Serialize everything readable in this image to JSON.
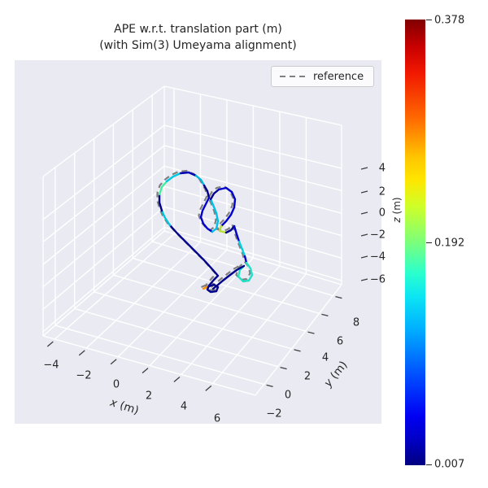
{
  "title": {
    "line1": "APE w.r.t. translation part (m)",
    "line2": "(with Sim(3) Umeyama alignment)"
  },
  "legend": {
    "items": [
      {
        "label": "reference",
        "line_style": "dashed",
        "color": "#808080"
      }
    ]
  },
  "colorbar": {
    "colormap": "jet",
    "max_label": "0.378",
    "mid_label": "0.192",
    "min_label": "0.007"
  },
  "axes": {
    "x": {
      "var": "x",
      "unit": " (m)",
      "ticks": [
        "−4",
        "−2",
        "0",
        "2",
        "4",
        "6"
      ]
    },
    "y": {
      "var": "y",
      "unit": " (m)",
      "ticks": [
        "−2",
        "0",
        "2",
        "4",
        "6",
        "8"
      ]
    },
    "z": {
      "var": "z",
      "unit": " (m)",
      "ticks": [
        "4",
        "2",
        "0",
        "−2",
        "−4",
        "−6"
      ]
    }
  },
  "colors": {
    "axes_background": "#eaeaf2",
    "grid": "#ffffff",
    "text": "#262626",
    "reference_line": "#7f7f7f",
    "tick_mark": "#3f3f3f"
  },
  "chart_data": {
    "type": "line",
    "subtype": "3d-trajectory-colormapped",
    "title": "APE w.r.t. translation part (m) (with Sim(3) Umeyama alignment)",
    "x_ticks": [
      -4,
      -2,
      0,
      2,
      4,
      6
    ],
    "y_ticks": [
      -2,
      0,
      2,
      4,
      6,
      8
    ],
    "z_ticks": [
      4,
      2,
      0,
      -2,
      -4,
      -6
    ],
    "xlabel": "x (m)",
    "ylabel": "y (m)",
    "zlabel": "z (m)",
    "colorbar_min": 0.007,
    "colorbar_mid": 0.192,
    "colorbar_max": 0.378,
    "colormap": "jet",
    "legend_position": "upper right",
    "grid": true,
    "coordinate_space": "figure_pixels",
    "reference_style": {
      "color": "#7f7f7f",
      "dash": "7 5",
      "width": 2.2
    },
    "trajectory_segments": [
      {
        "color": "#ff9500",
        "points": [
          [
            250,
            355
          ],
          [
            257,
            352
          ]
        ]
      },
      {
        "color": "#00008b",
        "points": [
          [
            257,
            352
          ],
          [
            263,
            350
          ],
          [
            268,
            353
          ],
          [
            266,
            358
          ],
          [
            259,
            359
          ],
          [
            255,
            356
          ],
          [
            257,
            351
          ]
        ]
      },
      {
        "color": "#00008b",
        "points": [
          [
            257,
            351
          ],
          [
            263,
            344
          ],
          [
            268,
            339
          ],
          [
            261,
            331
          ],
          [
            251,
            320
          ],
          [
            240,
            309
          ],
          [
            229,
            298
          ],
          [
            218,
            287
          ],
          [
            209,
            277
          ]
        ]
      },
      {
        "color": "#00c4dc",
        "points": [
          [
            209,
            277
          ],
          [
            203,
            268
          ],
          [
            199,
            259
          ]
        ]
      },
      {
        "color": "#00008b",
        "points": [
          [
            199,
            259
          ],
          [
            196,
            249
          ],
          [
            196,
            239
          ]
        ]
      },
      {
        "color": "#44eda0",
        "points": [
          [
            196,
            239
          ],
          [
            199,
            230
          ],
          [
            205,
            223
          ]
        ]
      },
      {
        "color": "#00c8e0",
        "points": [
          [
            205,
            223
          ],
          [
            213,
            217
          ],
          [
            222,
            213
          ]
        ]
      },
      {
        "color": "#0000b4",
        "points": [
          [
            222,
            213
          ],
          [
            232,
            212
          ],
          [
            241,
            216
          ]
        ]
      },
      {
        "color": "#00b4dc",
        "points": [
          [
            241,
            216
          ],
          [
            247,
            221
          ],
          [
            251,
            228
          ]
        ]
      },
      {
        "color": "#00008b",
        "points": [
          [
            251,
            228
          ],
          [
            255,
            235
          ],
          [
            257,
            243
          ]
        ]
      },
      {
        "color": "#0000cd",
        "points": [
          [
            257,
            243
          ],
          [
            253,
            251
          ],
          [
            249,
            259
          ],
          [
            247,
            267
          ],
          [
            250,
            275
          ],
          [
            255,
            281
          ],
          [
            261,
            285
          ]
        ]
      },
      {
        "color": "#00bfe8",
        "points": [
          [
            261,
            285
          ],
          [
            266,
            281
          ],
          [
            268,
            272
          ],
          [
            266,
            262
          ],
          [
            262,
            252
          ],
          [
            259,
            245
          ]
        ]
      },
      {
        "color": "#00008b",
        "points": [
          [
            259,
            245
          ],
          [
            263,
            238
          ],
          [
            269,
            233
          ]
        ]
      },
      {
        "color": "#0000cd",
        "points": [
          [
            269,
            233
          ],
          [
            278,
            231
          ],
          [
            285,
            236
          ],
          [
            289,
            245
          ],
          [
            288,
            255
          ],
          [
            284,
            264
          ],
          [
            278,
            272
          ],
          [
            272,
            278
          ]
        ]
      },
      {
        "color": "#b8e030",
        "points": [
          [
            272,
            278
          ],
          [
            270,
            284
          ],
          [
            278,
            286
          ]
        ]
      },
      {
        "color": "#00008b",
        "points": [
          [
            278,
            286
          ],
          [
            284,
            283
          ],
          [
            288,
            278
          ]
        ]
      },
      {
        "color": "#0000cd",
        "points": [
          [
            288,
            278
          ],
          [
            291,
            288
          ],
          [
            294,
            297
          ]
        ]
      },
      {
        "color": "#00d0e0",
        "points": [
          [
            294,
            297
          ],
          [
            298,
            307
          ],
          [
            301,
            315
          ]
        ]
      },
      {
        "color": "#0000cd",
        "points": [
          [
            301,
            315
          ],
          [
            303,
            323
          ]
        ]
      },
      {
        "color": "#20e0c8",
        "points": [
          [
            303,
            323
          ],
          [
            308,
            330
          ],
          [
            310,
            338
          ],
          [
            306,
            345
          ],
          [
            299,
            346
          ],
          [
            293,
            340
          ],
          [
            295,
            332
          ],
          [
            300,
            327
          ]
        ]
      },
      {
        "color": "#00008b",
        "points": [
          [
            300,
            327
          ],
          [
            291,
            332
          ],
          [
            283,
            338
          ],
          [
            274,
            345
          ],
          [
            267,
            351
          ],
          [
            262,
            355
          ]
        ]
      }
    ]
  }
}
